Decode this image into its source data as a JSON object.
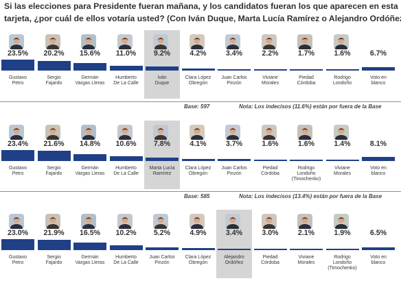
{
  "question": {
    "line1": "Si las elecciones para Presidente fueran mañana, y los candidatos fueran los que aparecen en esta",
    "line2": "tarjeta, ¿por cuál de ellos votaría usted? (Con Iván Duque, Marta Lucía Ramírez o Alejandro Ordóñez"
  },
  "colors": {
    "bar": "#1f3f86",
    "highlight": "#d5d5d5",
    "text": "#303030"
  },
  "chart_data": [
    {
      "type": "bar",
      "categories": [
        "Gustavo Petro",
        "Sergio Fajardo",
        "Germán Vargas Lleras",
        "Humberto De La Calle",
        "Iván Duque",
        "Clara López Obregón",
        "Juan Carlos Pinzón",
        "Viviane Morales",
        "Piedad Córdoba",
        "Rodrigo Londoño (Timochenko)",
        "Voto en blanco"
      ],
      "labels": [
        [
          "Gustavo",
          "Petro"
        ],
        [
          "Sergio",
          "Fajardo"
        ],
        [
          "Germán",
          "Vargas Lleras"
        ],
        [
          "Humberto",
          "De La Calle"
        ],
        [
          "Iván",
          "Duque"
        ],
        [
          "Clara López",
          "Obregón"
        ],
        [
          "Juan Carlos",
          "Pinzón"
        ],
        [
          "Viviane",
          "Morales"
        ],
        [
          "Piedad",
          "Córdoba"
        ],
        [
          "Rodrigo",
          "Londoño"
        ],
        [
          "Voto en",
          "blanco"
        ]
      ],
      "values": [
        23.5,
        20.2,
        15.6,
        11.0,
        9.2,
        4.2,
        3.4,
        2.2,
        1.7,
        1.6,
        6.7
      ],
      "value_labels": [
        "23.5%",
        "20.2%",
        "15.6%",
        "11.0%",
        "9.2%",
        "4.2%",
        "3.4%",
        "2.2%",
        "1.7%",
        "1.6%",
        "6.7%"
      ],
      "highlight": 4,
      "base": "Base: 597",
      "note": "Nota: Los indecisos (11.6%) están por fuera de la Base"
    },
    {
      "type": "bar",
      "categories": [
        "Gustavo Petro",
        "Sergio Fajardo",
        "Germán Vargas Lleras",
        "Humberto De La Calle",
        "Marta Lucía Ramírez",
        "Clara López Obregón",
        "Juan Carlos Pinzón",
        "Piedad Córdoba",
        "Rodrigo Londoño (Timochenko)",
        "Viviane Morales",
        "Voto en blanco"
      ],
      "labels": [
        [
          "Gustavo",
          "Petro"
        ],
        [
          "Sergio",
          "Fajardo"
        ],
        [
          "Germán",
          "Vargas Lleras"
        ],
        [
          "Humberto",
          "De La Calle"
        ],
        [
          "Marta Lucía",
          "Ramírez"
        ],
        [
          "Clara López",
          "Obregón"
        ],
        [
          "Juan Carlos",
          "Pinzón"
        ],
        [
          "Piedad",
          "Córdoba"
        ],
        [
          "Rodrigo",
          "Londoño",
          "(Timochenko)"
        ],
        [
          "Viviane",
          "Morales"
        ],
        [
          "Voto en",
          "blanco"
        ]
      ],
      "values": [
        23.4,
        21.6,
        14.8,
        10.6,
        7.8,
        4.1,
        3.7,
        1.6,
        1.6,
        1.4,
        8.1
      ],
      "value_labels": [
        "23.4%",
        "21.6%",
        "14.8%",
        "10.6%",
        "7.8%",
        "4.1%",
        "3.7%",
        "1.6%",
        "1.6%",
        "1.4%",
        "8.1%"
      ],
      "highlight": 4,
      "base": "Base: 585",
      "note": "Nota: Los indecisos (13.4%) están por fuera de la Base"
    },
    {
      "type": "bar",
      "categories": [
        "Gustavo Petro",
        "Sergio Fajardo",
        "Germán Vargas Lleras",
        "Humberto De La Calle",
        "Juan Carlos Pinzón",
        "Clara López Obregón",
        "Alejandro Ordóñez",
        "Piedad Córdoba",
        "Viviane Morales",
        "Rodrigo Londoño (Timochenko)",
        "Voto en blanco"
      ],
      "labels": [
        [
          "Gustavo",
          "Petro"
        ],
        [
          "Sergio",
          "Fajardo"
        ],
        [
          "Germán",
          "Vargas Lleras"
        ],
        [
          "Humberto",
          "De La Calle"
        ],
        [
          "Juan Carlos",
          "Pinzón"
        ],
        [
          "Clara López",
          "Obregón"
        ],
        [
          "Alejandro",
          "Ordóñez"
        ],
        [
          "Piedad",
          "Córdoba"
        ],
        [
          "Viviane",
          "Morales"
        ],
        [
          "Rodrigo",
          "Londoño",
          "(Timochenko)"
        ],
        [
          "Voto en",
          "blanco"
        ]
      ],
      "values": [
        23.0,
        21.9,
        16.5,
        10.2,
        5.2,
        4.9,
        3.4,
        3.0,
        2.1,
        1.9,
        6.5
      ],
      "value_labels": [
        "23.0%",
        "21.9%",
        "16.5%",
        "10.2%",
        "5.2%",
        "4.9%",
        "3.4%",
        "3.0%",
        "2.1%",
        "1.9%",
        "6.5%"
      ],
      "highlight": 6,
      "base": "",
      "note": ""
    }
  ]
}
